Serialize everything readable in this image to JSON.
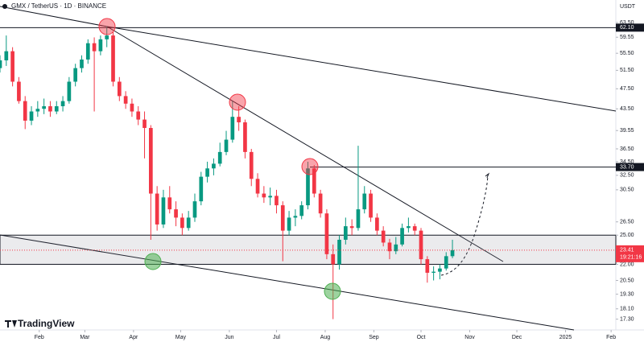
{
  "chart_data": {
    "type": "candlestick",
    "title": "GMX / TetherUS · 1D · BINANCE",
    "unit": "USDT",
    "brand": "TradingView",
    "countdown": "19:21:16",
    "up_color": "#089981",
    "down_color": "#f23645",
    "log_scale": true,
    "grid": false,
    "xlim": [
      0,
      392
    ],
    "ylim": [
      16.5,
      70.1
    ],
    "xticks": [
      {
        "value": 25,
        "label": "Feb"
      },
      {
        "value": 54,
        "label": "Mar"
      },
      {
        "value": 85,
        "label": "Apr"
      },
      {
        "value": 115,
        "label": "May"
      },
      {
        "value": 146,
        "label": "Jun"
      },
      {
        "value": 176,
        "label": "Jul"
      },
      {
        "value": 207,
        "label": "Aug"
      },
      {
        "value": 238,
        "label": "Sep"
      },
      {
        "value": 268,
        "label": "Oct"
      },
      {
        "value": 299,
        "label": "Nov"
      },
      {
        "value": 329,
        "label": "Dec"
      },
      {
        "value": 360,
        "label": "2025"
      },
      {
        "value": 389,
        "label": "Feb"
      }
    ],
    "yticks": [
      {
        "value": 63.5,
        "label": "63.50"
      },
      {
        "value": 59.55,
        "label": "59.55"
      },
      {
        "value": 55.5,
        "label": "55.50"
      },
      {
        "value": 51.5,
        "label": "51.50"
      },
      {
        "value": 47.5,
        "label": "47.50"
      },
      {
        "value": 43.5,
        "label": "43.50"
      },
      {
        "value": 39.55,
        "label": "39.55"
      },
      {
        "value": 36.5,
        "label": "36.50"
      },
      {
        "value": 34.5,
        "label": "34.50"
      },
      {
        "value": 32.5,
        "label": "32.50"
      },
      {
        "value": 30.5,
        "label": "30.50"
      },
      {
        "value": 26.5,
        "label": "26.50"
      },
      {
        "value": 25,
        "label": "25.00"
      },
      {
        "value": 22,
        "label": "22.00"
      },
      {
        "value": 20.5,
        "label": "20.50"
      },
      {
        "value": 19.3,
        "label": "19.30"
      },
      {
        "value": 18.1,
        "label": "18.10"
      },
      {
        "value": 17.3,
        "label": "17.30"
      }
    ],
    "levels": [
      {
        "value": 62.1,
        "label": "62.10"
      },
      {
        "value": 33.7,
        "label": "33.70"
      }
    ],
    "zone": [
      22,
      25
    ],
    "x": [
      0,
      4,
      8,
      12,
      16,
      20,
      24,
      28,
      32,
      36,
      40,
      44,
      48,
      52,
      56,
      60,
      64,
      68,
      72,
      76,
      80,
      84,
      88,
      92,
      96,
      100,
      104,
      108,
      112,
      116,
      120,
      124,
      128,
      132,
      136,
      140,
      144,
      148,
      152,
      156,
      160,
      164,
      168,
      172,
      176,
      180,
      184,
      188,
      192,
      196,
      200,
      204,
      208,
      212,
      216,
      220,
      224,
      228,
      232,
      236,
      240,
      244,
      248,
      252,
      256,
      260,
      264,
      268,
      272,
      276,
      280,
      284,
      288
    ],
    "candles": [
      [
        52,
        55,
        51,
        53.8
      ],
      [
        53.8,
        60,
        52.5,
        56
      ],
      [
        56,
        57,
        48,
        49
      ],
      [
        49,
        50,
        44.5,
        45
      ],
      [
        45,
        46,
        39.8,
        41.3
      ],
      [
        41.3,
        44,
        40.5,
        43
      ],
      [
        43,
        45,
        42,
        43.5
      ],
      [
        43.5,
        45.5,
        42.5,
        44
      ],
      [
        44,
        45,
        42,
        43
      ],
      [
        43,
        45,
        42.5,
        44
      ],
      [
        44,
        46,
        43,
        45
      ],
      [
        45,
        50,
        44.5,
        49
      ],
      [
        49,
        53,
        48,
        52
      ],
      [
        52,
        55,
        51,
        54
      ],
      [
        54,
        59,
        53,
        58
      ],
      [
        58,
        59.5,
        43,
        56
      ],
      [
        56,
        60,
        55,
        59
      ],
      [
        59,
        62.5,
        57,
        60
      ],
      [
        60,
        61,
        48,
        49
      ],
      [
        49,
        50,
        45,
        46
      ],
      [
        46,
        47,
        43.5,
        44.5
      ],
      [
        44.5,
        45.5,
        42,
        43
      ],
      [
        43,
        44,
        40.5,
        41.5
      ],
      [
        41.5,
        43,
        35,
        40
      ],
      [
        40,
        40.5,
        24.5,
        30
      ],
      [
        30,
        31,
        25.5,
        26.2
      ],
      [
        26.2,
        30.5,
        25.8,
        29.5
      ],
      [
        29.5,
        31,
        27.5,
        28
      ],
      [
        28,
        29,
        26,
        27
      ],
      [
        27,
        27.5,
        25,
        25.8
      ],
      [
        25.8,
        27.8,
        25.5,
        27
      ],
      [
        27,
        30,
        26.5,
        29
      ],
      [
        29,
        33,
        28.5,
        32.3
      ],
      [
        32.3,
        34.5,
        31.5,
        33.5
      ],
      [
        33.5,
        35,
        32.5,
        34.2
      ],
      [
        34.2,
        37.5,
        33.8,
        36
      ],
      [
        36,
        39.5,
        35.5,
        38
      ],
      [
        38,
        45,
        37.5,
        42
      ],
      [
        42,
        44,
        39.5,
        41
      ],
      [
        41,
        41.5,
        35,
        36
      ],
      [
        36,
        36.5,
        31,
        32
      ],
      [
        32,
        32.8,
        29.5,
        30
      ],
      [
        30,
        31,
        28.8,
        29.5
      ],
      [
        29.5,
        30.8,
        28.5,
        29.7
      ],
      [
        29.7,
        30.5,
        27.5,
        28.5
      ],
      [
        28.5,
        29,
        22.3,
        25.5
      ],
      [
        25.5,
        27.8,
        25,
        27
      ],
      [
        27,
        28,
        26,
        27.2
      ],
      [
        27.2,
        29,
        26.8,
        28.5
      ],
      [
        28.5,
        34.5,
        28,
        33.5
      ],
      [
        33.5,
        34,
        29.5,
        30
      ],
      [
        30,
        30.5,
        27,
        27.5
      ],
      [
        27.5,
        28,
        22.5,
        23
      ],
      [
        23,
        24,
        17.3,
        22
      ],
      [
        22,
        25,
        21.5,
        24.5
      ],
      [
        24.5,
        27,
        24,
        26
      ],
      [
        26,
        26.8,
        25,
        25.8
      ],
      [
        25.8,
        37,
        25.5,
        28
      ],
      [
        28,
        31,
        27.5,
        30
      ],
      [
        30,
        30.5,
        26.5,
        27
      ],
      [
        27,
        27.5,
        25,
        25.5
      ],
      [
        25.5,
        26,
        23.8,
        24.2
      ],
      [
        24.2,
        24.6,
        22.5,
        23.3
      ],
      [
        23.3,
        24.8,
        23,
        24
      ],
      [
        24,
        26.3,
        23.8,
        25.8
      ],
      [
        25.8,
        27,
        25.3,
        26
      ],
      [
        26,
        26.3,
        25,
        25.5
      ],
      [
        25.5,
        25.8,
        22,
        22.5
      ],
      [
        22.5,
        22.8,
        20.3,
        21.2
      ],
      [
        21.2,
        21.8,
        20.5,
        21.3
      ],
      [
        21.3,
        22,
        20.6,
        21.6
      ],
      [
        21.6,
        23.2,
        21.4,
        22.8
      ],
      [
        22.8,
        24.5,
        22.6,
        23.41
      ]
    ]
  }
}
